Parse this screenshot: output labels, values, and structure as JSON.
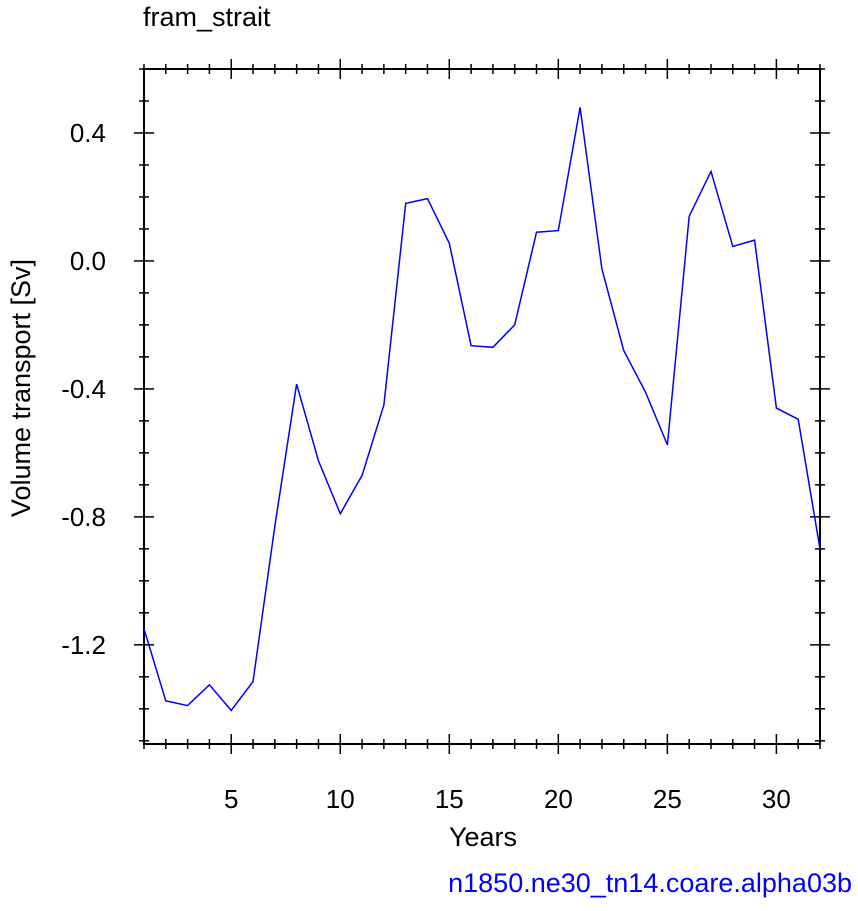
{
  "chart_data": {
    "type": "line",
    "title": "fram_strait",
    "xlabel": "Years",
    "ylabel": "Volume transport [Sv]",
    "caption": "n1850.ne30_tn14.coare.alpha03b",
    "xlim": [
      1,
      32
    ],
    "ylim": [
      -1.51,
      0.6
    ],
    "xticks": [
      5,
      10,
      15,
      20,
      25,
      30
    ],
    "xtick_labels": [
      "5",
      "10",
      "15",
      "20",
      "25",
      "30"
    ],
    "yticks": [
      0.4,
      0.0,
      -0.4,
      -0.8,
      -1.2
    ],
    "ytick_labels": [
      "0.4",
      "0.0",
      "-0.4",
      "-0.8",
      "-1.2"
    ],
    "grid": false,
    "series": [
      {
        "color": "#0000ff",
        "x": [
          1,
          2,
          3,
          4,
          5,
          6,
          7,
          8,
          9,
          10,
          11,
          12,
          13,
          14,
          15,
          16,
          17,
          18,
          19,
          20,
          21,
          22,
          23,
          24,
          25,
          26,
          27,
          28,
          29,
          30,
          31,
          32
        ],
        "y": [
          -1.15,
          -1.375,
          -1.39,
          -1.325,
          -1.405,
          -1.315,
          -0.83,
          -0.385,
          -0.625,
          -0.79,
          -0.67,
          -0.45,
          0.18,
          0.195,
          0.055,
          -0.265,
          -0.27,
          -0.2,
          0.09,
          0.095,
          0.48,
          -0.025,
          -0.28,
          -0.41,
          -0.575,
          0.14,
          0.28,
          0.045,
          0.065,
          -0.46,
          -0.495,
          -0.9
        ]
      }
    ]
  }
}
